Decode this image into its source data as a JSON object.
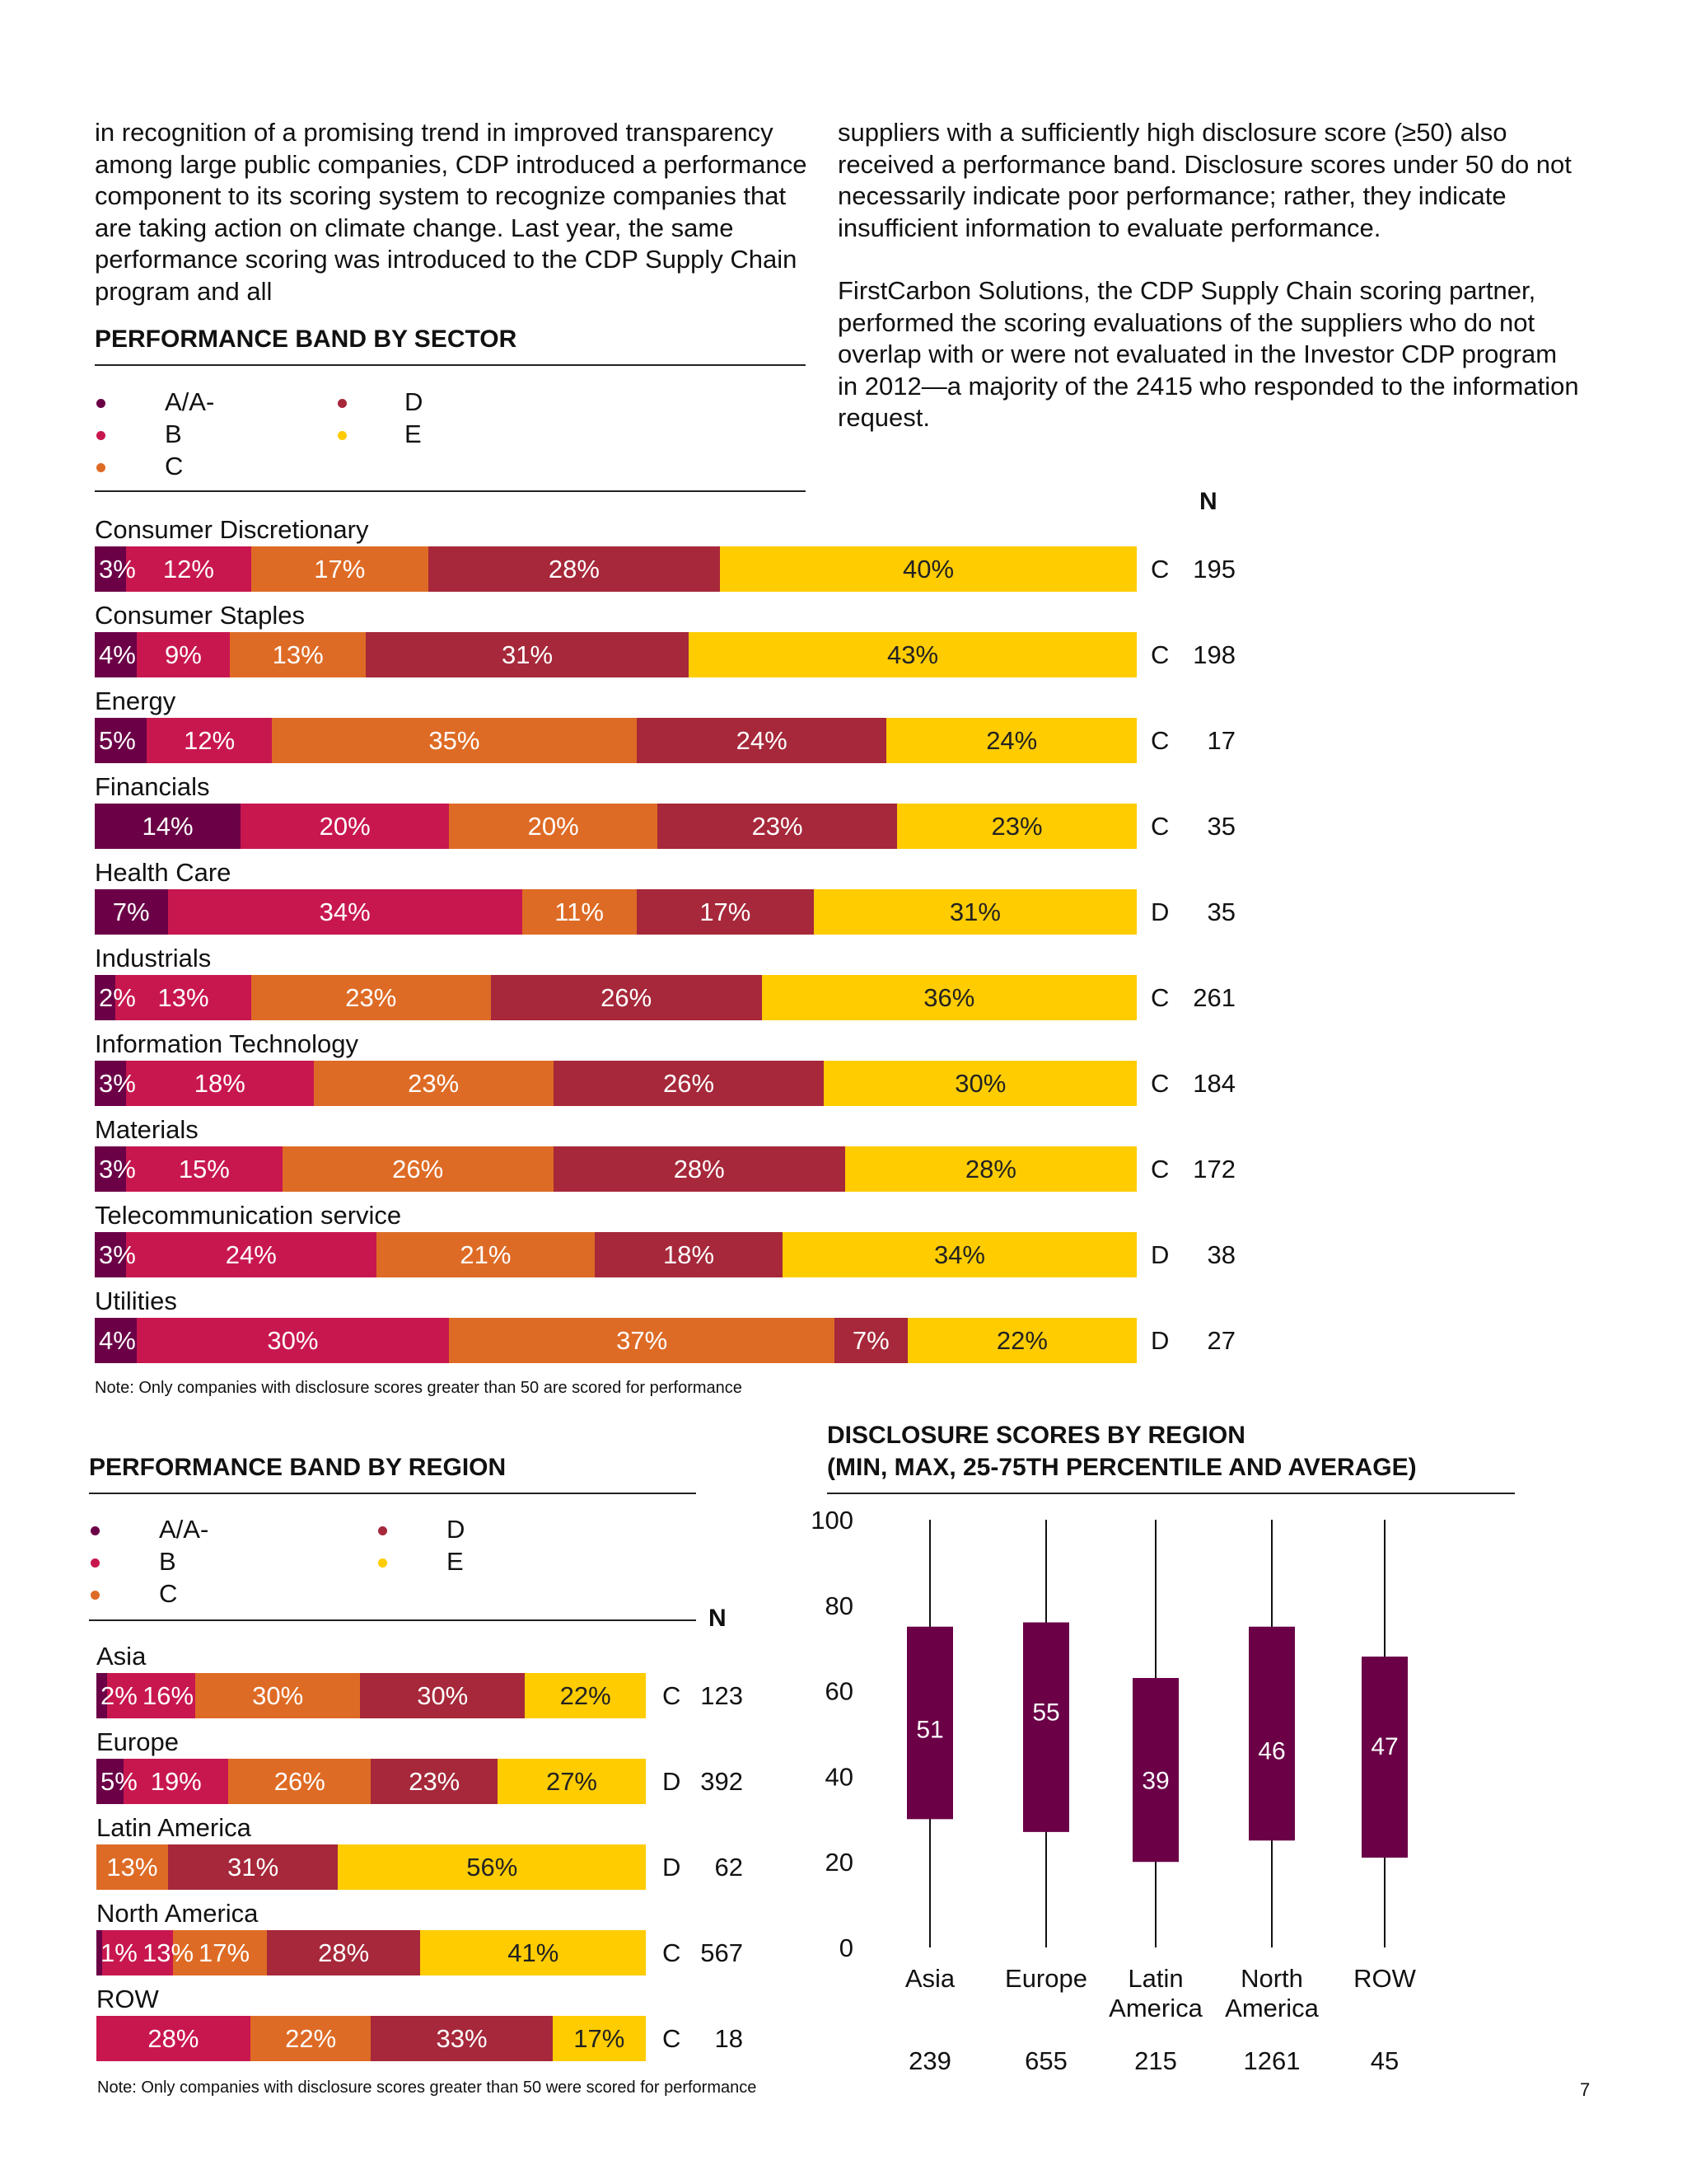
{
  "text": {
    "left_paragraph": "in recognition of a promising trend in improved transparency among large public companies, CDP introduced a performance component to its scoring system to recognize companies that are taking action on climate change. Last year, the same performance scoring was introduced to the CDP Supply Chain program and all",
    "right_paragraph_1": "suppliers with a sufficiently high disclosure score (≥50) also received a performance band. Disclosure scores under 50 do not necessarily indicate poor performance; rather, they indicate insufficient information to evaluate performance.",
    "right_paragraph_2": "FirstCarbon Solutions, the CDP Supply Chain scoring partner, performed the scoring evaluations of the suppliers who do not overlap with or were not evaluated in the Investor CDP program in 2012—a majority of the 2415 who responded to the information request.",
    "page_number": "7"
  },
  "legend": [
    {
      "label": "A/A-",
      "color": "#6b0047"
    },
    {
      "label": "B",
      "color": "#c8174f"
    },
    {
      "label": "C",
      "color": "#de6b25"
    },
    {
      "label": "D",
      "color": "#a6283a"
    },
    {
      "label": "E",
      "color": "#ffcc00"
    }
  ],
  "chart_data": [
    {
      "type": "bar",
      "stacked": true,
      "orientation": "horizontal",
      "title": "PERFORMANCE BAND BY SECTOR",
      "n_header": "N",
      "note": "Note: Only companies with disclosure scores greater than 50 are scored for performance",
      "series_names": [
        "A/A-",
        "B",
        "C",
        "D",
        "E"
      ],
      "rows": [
        {
          "category": "Consumer Discretionary",
          "values": [
            3,
            12,
            17,
            28,
            40
          ],
          "grade": "C",
          "n": "195"
        },
        {
          "category": "Consumer Staples",
          "values": [
            4,
            9,
            13,
            31,
            43
          ],
          "grade": "C",
          "n": "198"
        },
        {
          "category": "Energy",
          "values": [
            5,
            12,
            35,
            24,
            24
          ],
          "grade": "C",
          "n": "17"
        },
        {
          "category": "Financials",
          "values": [
            14,
            20,
            20,
            23,
            23
          ],
          "grade": "C",
          "n": "35"
        },
        {
          "category": "Health Care",
          "values": [
            7,
            34,
            11,
            17,
            31
          ],
          "grade": "D",
          "n": "35"
        },
        {
          "category": "Industrials",
          "values": [
            2,
            13,
            23,
            26,
            36
          ],
          "grade": "C",
          "n": "261"
        },
        {
          "category": "Information Technology",
          "values": [
            3,
            18,
            23,
            26,
            30
          ],
          "grade": "C",
          "n": "184"
        },
        {
          "category": "Materials",
          "values": [
            3,
            15,
            26,
            28,
            28
          ],
          "grade": "C",
          "n": "172"
        },
        {
          "category": "Telecommunication service",
          "values": [
            3,
            24,
            21,
            18,
            34
          ],
          "grade": "D",
          "n": "38"
        },
        {
          "category": "Utilities",
          "values": [
            4,
            30,
            37,
            7,
            22
          ],
          "grade": "D",
          "n": "27"
        }
      ]
    },
    {
      "type": "bar",
      "stacked": true,
      "orientation": "horizontal",
      "title": "PERFORMANCE BAND BY REGION",
      "n_header": "N",
      "note": "Note: Only companies with disclosure scores greater than 50 were scored for performance",
      "series_names": [
        "A/A-",
        "B",
        "C",
        "D",
        "E"
      ],
      "rows": [
        {
          "category": "Asia",
          "values": [
            2,
            16,
            30,
            30,
            22
          ],
          "grade": "C",
          "n": "123"
        },
        {
          "category": "Europe",
          "values": [
            5,
            19,
            26,
            23,
            27
          ],
          "grade": "D",
          "n": "392"
        },
        {
          "category": "Latin America",
          "values": [
            0,
            0,
            13,
            31,
            56
          ],
          "grade": "D",
          "n": "62"
        },
        {
          "category": "North America",
          "values": [
            1,
            13,
            17,
            28,
            41
          ],
          "grade": "C",
          "n": "567"
        },
        {
          "category": "ROW",
          "values": [
            0,
            28,
            22,
            33,
            17
          ],
          "grade": "C",
          "n": "18"
        }
      ]
    },
    {
      "type": "boxplot",
      "title_line1": "DISCLOSURE SCORES BY REGION",
      "title_line2": "(MIN, MAX, 25-75TH PERCENTILE AND AVERAGE)",
      "ylim": [
        0,
        100
      ],
      "yticks": [
        0,
        20,
        40,
        60,
        80,
        100
      ],
      "color": "#6b0047",
      "boxes": [
        {
          "category": [
            "Asia"
          ],
          "min": 0,
          "q1": 30,
          "q3": 75,
          "max": 100,
          "average": 51,
          "n": "239"
        },
        {
          "category": [
            "Europe"
          ],
          "min": 0,
          "q1": 27,
          "q3": 76,
          "max": 100,
          "average": 55,
          "n": "655"
        },
        {
          "category": [
            "Latin",
            "America"
          ],
          "min": 0,
          "q1": 20,
          "q3": 63,
          "max": 100,
          "average": 39,
          "n": "215"
        },
        {
          "category": [
            "North",
            "America"
          ],
          "min": 0,
          "q1": 25,
          "q3": 75,
          "max": 100,
          "average": 46,
          "n": "1261"
        },
        {
          "category": [
            "ROW"
          ],
          "min": 0,
          "q1": 21,
          "q3": 68,
          "max": 100,
          "average": 47,
          "n": "45"
        }
      ]
    }
  ]
}
